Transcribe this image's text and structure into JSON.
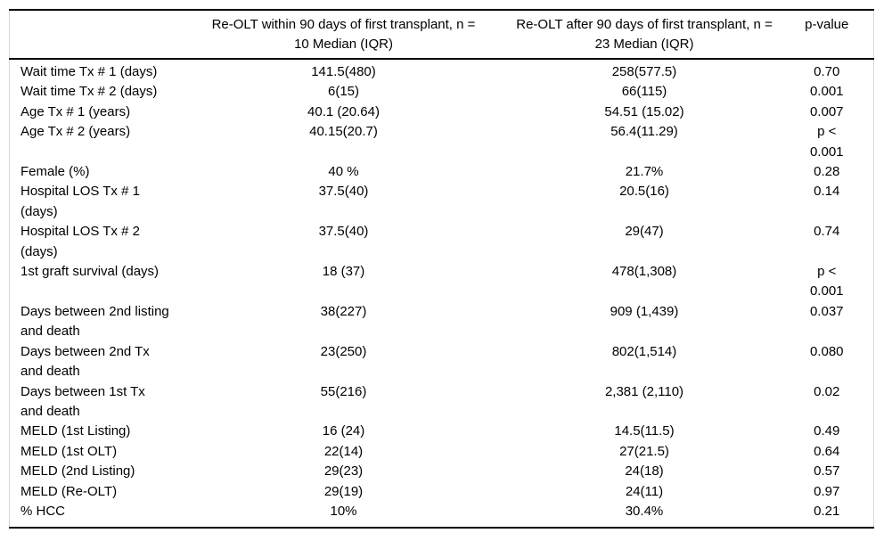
{
  "table": {
    "columns": [
      {
        "label": ""
      },
      {
        "label": "Re-OLT within 90 days of first transplant, n =\n10 Median (IQR)"
      },
      {
        "label": "Re-OLT after 90 days of first transplant, n =\n23 Median (IQR)"
      },
      {
        "label": "p-value"
      }
    ],
    "rows": [
      {
        "label": "Wait time Tx # 1 (days)",
        "within_90": "141.5(480)",
        "after_90": "258(577.5)",
        "p_value": "0.70"
      },
      {
        "label": "Wait time Tx # 2 (days)",
        "within_90": "6(15)",
        "after_90": "66(115)",
        "p_value": "0.001"
      },
      {
        "label": "Age Tx # 1 (years)",
        "within_90": "40.1 (20.64)",
        "after_90": "54.51 (15.02)",
        "p_value": "0.007"
      },
      {
        "label": "Age Tx # 2 (years)",
        "within_90": "40.15(20.7)",
        "after_90": "56.4(11.29)",
        "p_value": "p <\n0.001"
      },
      {
        "label": "Female (%)",
        "within_90": "40 %",
        "after_90": "21.7%",
        "p_value": "0.28"
      },
      {
        "label": "Hospital LOS Tx # 1\n(days)",
        "within_90": "37.5(40)",
        "after_90": "20.5(16)",
        "p_value": "0.14"
      },
      {
        "label": "Hospital LOS Tx # 2\n(days)",
        "within_90": "37.5(40)",
        "after_90": "29(47)",
        "p_value": "0.74"
      },
      {
        "label": "1st graft survival (days)",
        "within_90": "18 (37)",
        "after_90": "478(1,308)",
        "p_value": "p <\n0.001"
      },
      {
        "label": "Days between 2nd listing\nand death",
        "within_90": "38(227)",
        "after_90": "909 (1,439)",
        "p_value": "0.037"
      },
      {
        "label": "Days between 2nd Tx\nand death",
        "within_90": "23(250)",
        "after_90": "802(1,514)",
        "p_value": "0.080"
      },
      {
        "label": "Days between 1st Tx\nand death",
        "within_90": "55(216)",
        "after_90": "2,381 (2,110)",
        "p_value": "0.02"
      },
      {
        "label": "MELD (1st Listing)",
        "within_90": "16 (24)",
        "after_90": "14.5(11.5)",
        "p_value": "0.49"
      },
      {
        "label": "MELD (1st OLT)",
        "within_90": "22(14)",
        "after_90": "27(21.5)",
        "p_value": "0.64"
      },
      {
        "label": "MELD (2nd Listing)",
        "within_90": "29(23)",
        "after_90": "24(18)",
        "p_value": "0.57"
      },
      {
        "label": "MELD (Re-OLT)",
        "within_90": "29(19)",
        "after_90": "24(11)",
        "p_value": "0.97"
      },
      {
        "label": "% HCC",
        "within_90": "10%",
        "after_90": "30.4%",
        "p_value": "0.21"
      }
    ]
  },
  "colors": {
    "rule": "#000000",
    "side_rule": "#d6d6d6",
    "text": "#000000",
    "background": "#ffffff"
  }
}
